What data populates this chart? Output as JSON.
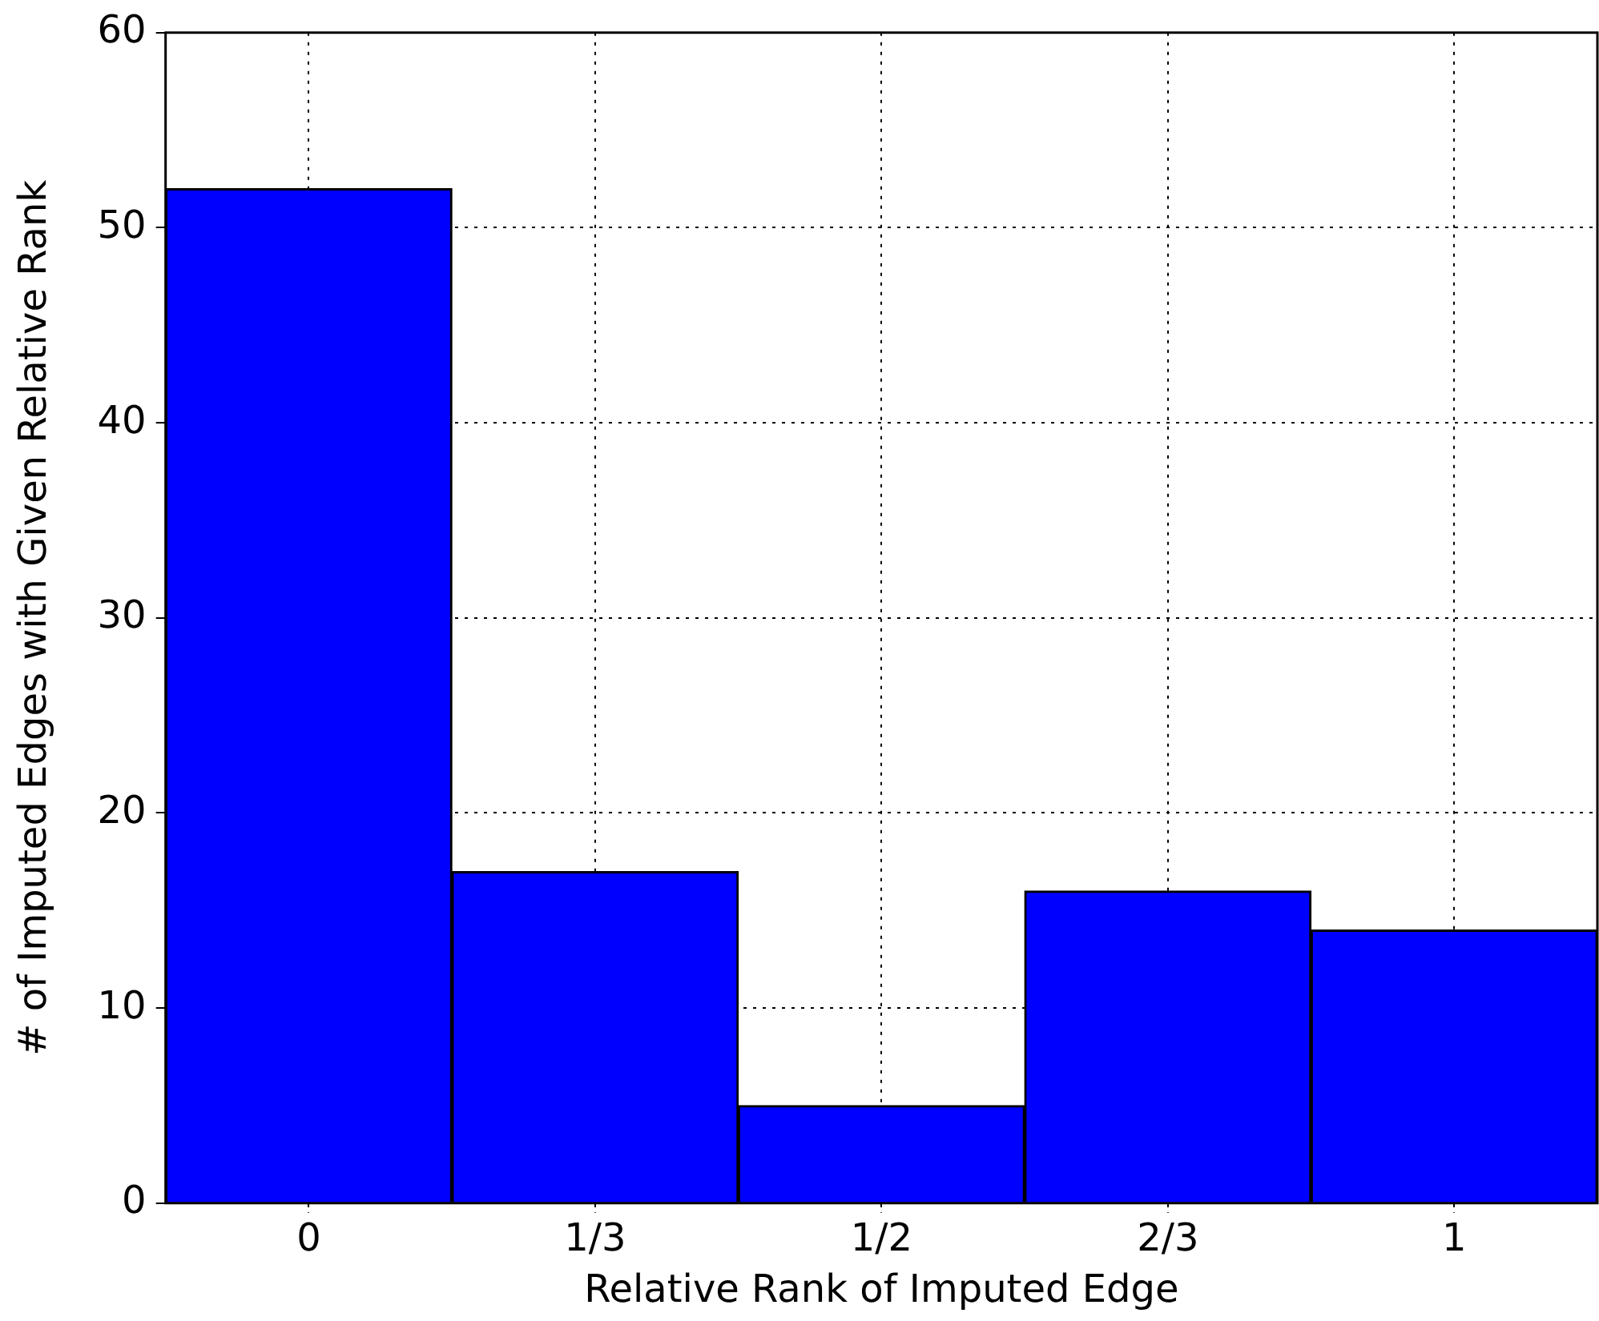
{
  "chart_data": {
    "type": "bar",
    "xlabel": "Relative Rank of Imputed Edge",
    "ylabel": "# of Imputed Edges with Given Relative Rank",
    "categories": [
      "0",
      "1/3",
      "1/2",
      "2/3",
      "1"
    ],
    "values": [
      52,
      17,
      5,
      16,
      14
    ],
    "color": "#0000ff",
    "ylim": [
      0,
      60
    ],
    "yticks": [
      0,
      10,
      20,
      30,
      40,
      50,
      60
    ],
    "grid": true
  }
}
